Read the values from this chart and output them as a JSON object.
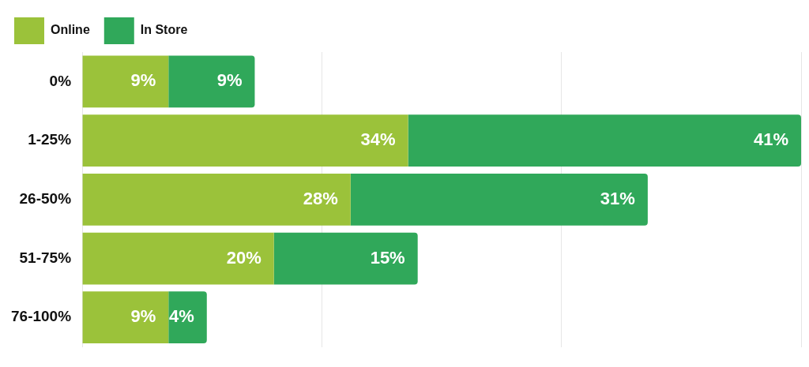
{
  "chart_data": {
    "type": "bar",
    "orientation": "horizontal",
    "stacked": true,
    "categories": [
      "0%",
      "1-25%",
      "26-50%",
      "51-75%",
      "76-100%"
    ],
    "series": [
      {
        "name": "Online",
        "color": "#9bc23a",
        "values": [
          9,
          34,
          28,
          20,
          9
        ],
        "value_labels": [
          "9%",
          "34%",
          "28%",
          "20%",
          "9%"
        ]
      },
      {
        "name": "In Store",
        "color": "#30a85a",
        "values": [
          9,
          41,
          31,
          15,
          4
        ],
        "value_labels": [
          "9%",
          "41%",
          "31%",
          "15%",
          "4%"
        ]
      }
    ],
    "xlim": [
      0,
      75
    ],
    "xticks": [
      {
        "value": 0,
        "label": null
      },
      {
        "value": 25,
        "label": null
      },
      {
        "value": 50,
        "label": null
      },
      {
        "value": 75,
        "label": null
      }
    ],
    "tick_labels": "y",
    "grid": "x",
    "legend": "top left"
  }
}
